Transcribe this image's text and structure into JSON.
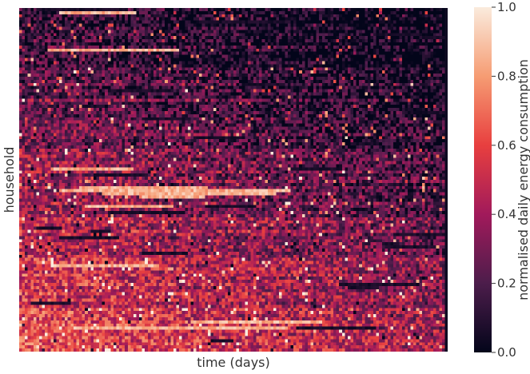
{
  "chart_data": {
    "type": "heatmap",
    "title": "",
    "xlabel": "time (days)",
    "ylabel": "household",
    "x_ticks_shown": false,
    "y_ticks_shown": false,
    "rows": 110,
    "columns": 150,
    "row_order": "households sorted by overall consumption, lowest at top, highest at bottom",
    "trend": "consumption decreases over time within each household (brighter at the start, darker toward the end); final day column near 0",
    "value_range": [
      0,
      1
    ],
    "colormap": "rocket",
    "colormap_stops": [
      "#03051a",
      "#4c1d4b",
      "#a11a5b",
      "#e83f3f",
      "#f69c73",
      "#faebdd"
    ],
    "colorbar": {
      "label": "normalised daily energy consumption",
      "ticks": [
        "0.0",
        "0.2",
        "0.4",
        "0.6",
        "0.8",
        "1.0"
      ],
      "tick_values": [
        0,
        0.2,
        0.4,
        0.6,
        0.8,
        1.0
      ]
    }
  }
}
